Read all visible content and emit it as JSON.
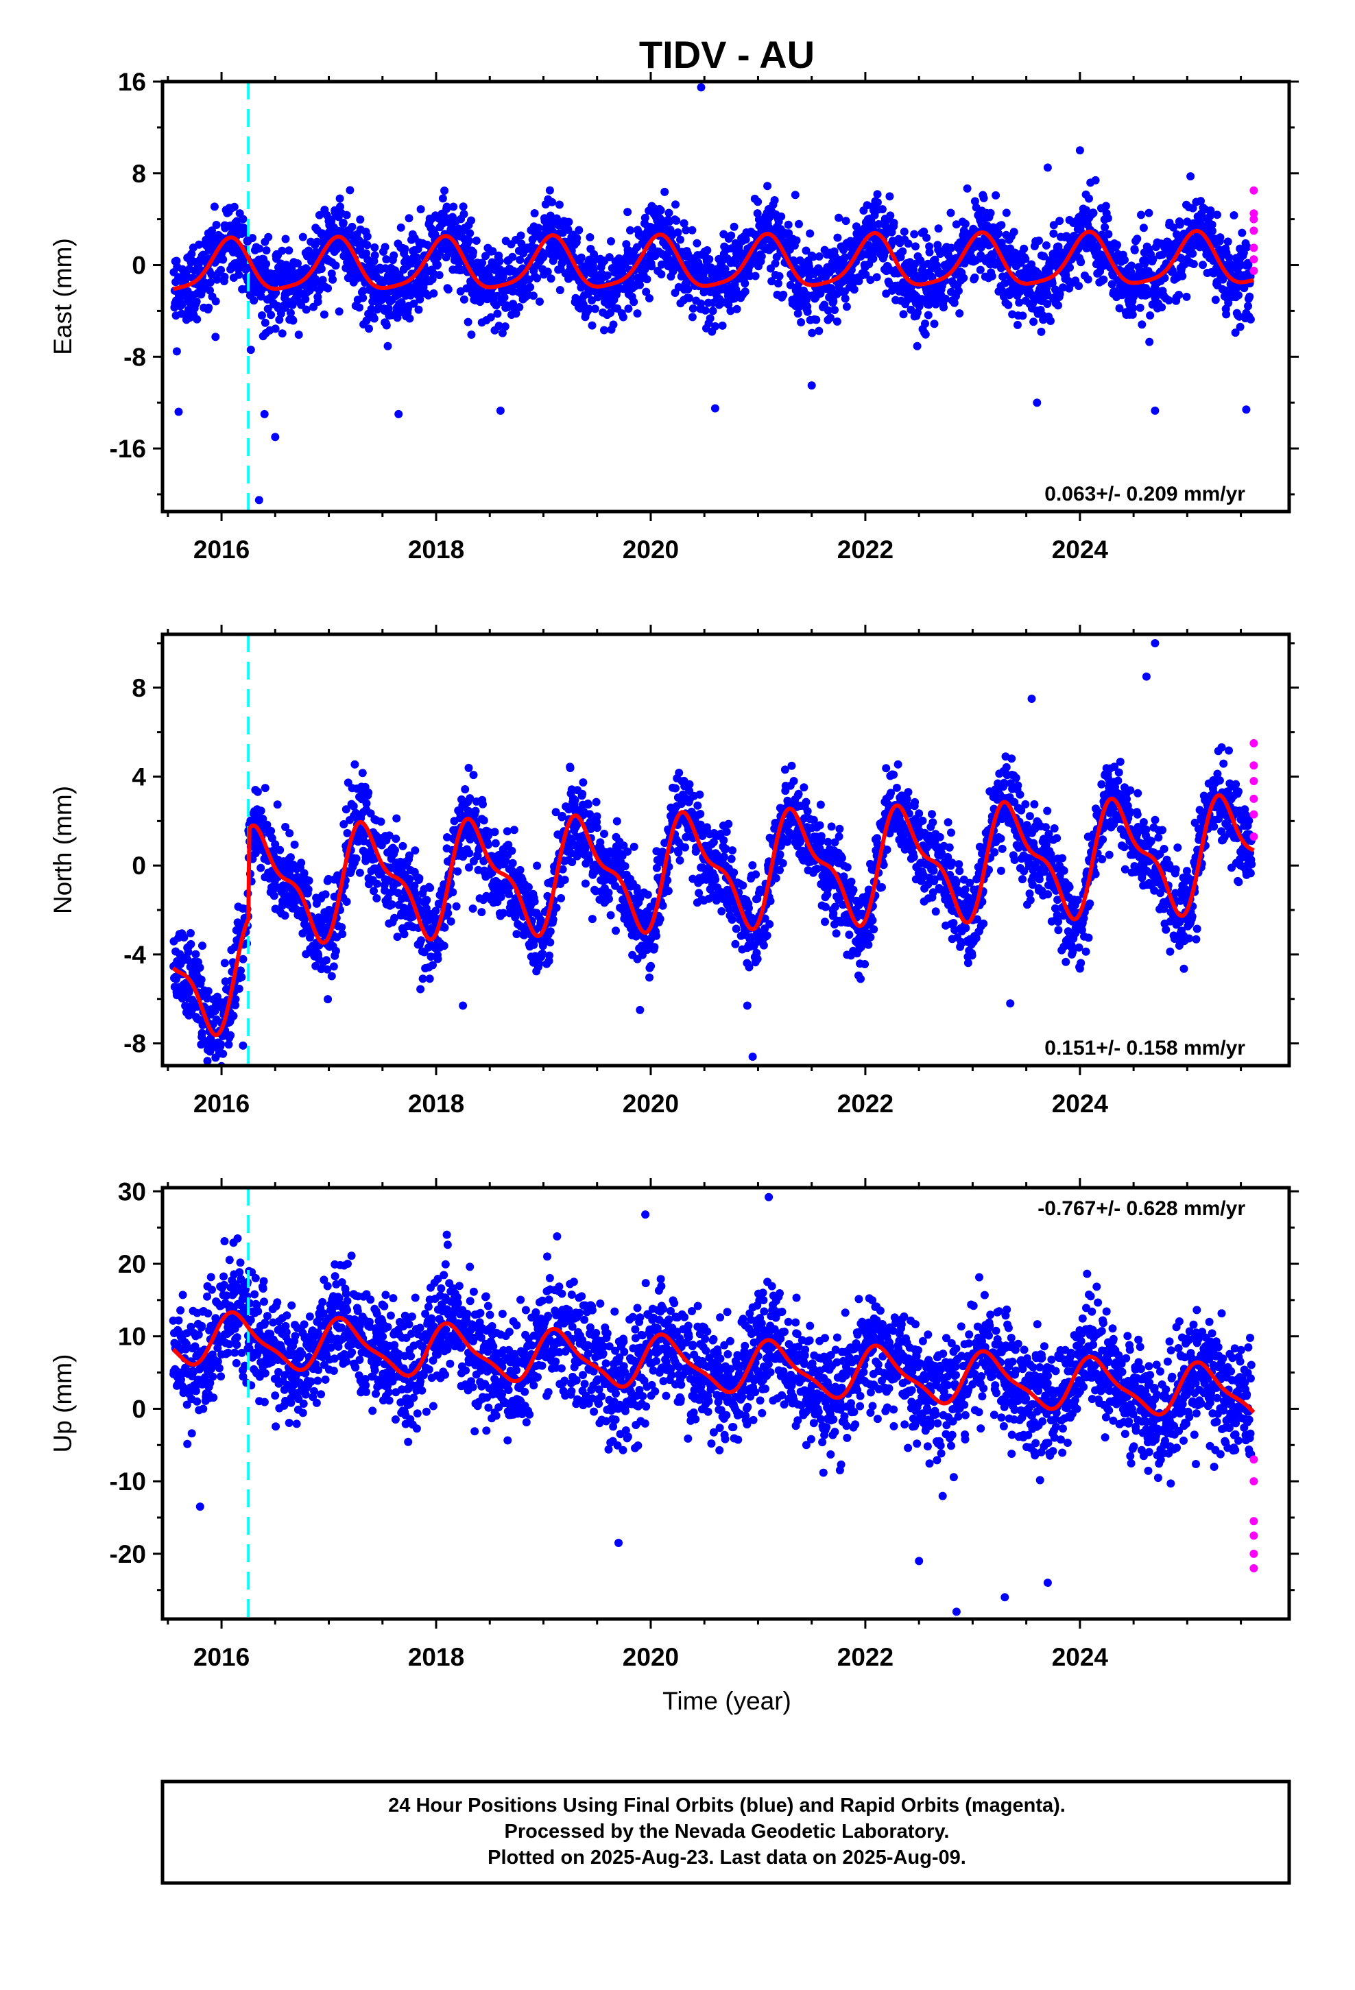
{
  "title": "TIDV - AU",
  "x_axis_label": "Time (year)",
  "footer": {
    "line1": "24 Hour Positions Using Final Orbits (blue) and Rapid Orbits (magenta).",
    "line2": "Processed by the Nevada Geodetic Laboratory.",
    "line3": "Plotted on 2025-Aug-23. Last data on 2025-Aug-09."
  },
  "colors": {
    "final": "#0000ff",
    "rapid": "#ff00ff",
    "model": "#ff0000",
    "event": "#00ffff"
  },
  "chart_data": [
    {
      "type": "scatter",
      "ylabel": "East (mm)",
      "rate_label": "0.063+/- 0.209 mm/yr",
      "xlim": [
        2015.45,
        2025.95
      ],
      "ylim": [
        -21.5,
        16
      ],
      "x_ticks": [
        "2016",
        "2018",
        "2020",
        "2022",
        "2024"
      ],
      "y_ticks": [
        "-16",
        "-8",
        "0",
        "8",
        "16"
      ],
      "equipment_change": 2016.25,
      "model": {
        "offset": 0,
        "rate": 0.063,
        "amp1": 2.2,
        "phase1": 1.1,
        "amp2": 0.5,
        "phase2": 0.3,
        "jump": 0,
        "scatter": 1.8
      },
      "final_points": {
        "start": 2015.55,
        "end": 2025.6,
        "count": 3600
      },
      "rapid_points": [
        {
          "x": 2025.62,
          "y": 6.5
        },
        {
          "x": 2025.62,
          "y": 4.5
        },
        {
          "x": 2025.62,
          "y": 4.0
        },
        {
          "x": 2025.62,
          "y": 3.0
        },
        {
          "x": 2025.62,
          "y": 1.5
        },
        {
          "x": 2025.62,
          "y": 0.5
        },
        {
          "x": 2025.62,
          "y": -0.5
        }
      ],
      "outliers": [
        {
          "x": 2020.47,
          "y": 15.5
        },
        {
          "x": 2024.0,
          "y": 10.0
        },
        {
          "x": 2023.7,
          "y": 8.5
        },
        {
          "x": 2016.35,
          "y": -20.5
        },
        {
          "x": 2016.5,
          "y": -15.0
        },
        {
          "x": 2016.4,
          "y": -13.0
        },
        {
          "x": 2015.6,
          "y": -12.8
        },
        {
          "x": 2017.65,
          "y": -13.0
        },
        {
          "x": 2018.6,
          "y": -12.7
        },
        {
          "x": 2020.6,
          "y": -12.5
        },
        {
          "x": 2021.5,
          "y": -10.5
        },
        {
          "x": 2023.6,
          "y": -12.0
        },
        {
          "x": 2024.7,
          "y": -12.7
        },
        {
          "x": 2025.55,
          "y": -12.6
        }
      ]
    },
    {
      "type": "scatter",
      "ylabel": "North (mm)",
      "rate_label": "0.151+/- 0.158 mm/yr",
      "xlim": [
        2015.45,
        2025.95
      ],
      "ylim": [
        -9,
        10.4
      ],
      "x_ticks": [
        "2016",
        "2018",
        "2020",
        "2022",
        "2024"
      ],
      "y_ticks": [
        "-8",
        "-4",
        "0",
        "4",
        "8"
      ],
      "equipment_change": 2016.25,
      "model": {
        "offset": -0.2,
        "rate": 0.151,
        "amp1": 2.2,
        "phase1": -0.8,
        "amp2": 0.9,
        "phase2": -1.5,
        "jump": 4.0,
        "scatter": 1.0
      },
      "final_points": {
        "start": 2015.55,
        "end": 2025.6,
        "count": 3600
      },
      "rapid_points": [
        {
          "x": 2025.62,
          "y": 5.5
        },
        {
          "x": 2025.62,
          "y": 4.5
        },
        {
          "x": 2025.62,
          "y": 3.8
        },
        {
          "x": 2025.62,
          "y": 3.0
        },
        {
          "x": 2025.62,
          "y": 2.3
        },
        {
          "x": 2025.62,
          "y": 1.3
        }
      ],
      "outliers": [
        {
          "x": 2024.7,
          "y": 10.0
        },
        {
          "x": 2024.62,
          "y": 8.5
        },
        {
          "x": 2023.55,
          "y": 7.5
        },
        {
          "x": 2015.9,
          "y": -8.0
        },
        {
          "x": 2016.2,
          "y": -8.1
        },
        {
          "x": 2020.95,
          "y": -8.6
        },
        {
          "x": 2020.9,
          "y": -6.3
        },
        {
          "x": 2019.9,
          "y": -6.5
        },
        {
          "x": 2023.35,
          "y": -6.2
        },
        {
          "x": 2018.25,
          "y": -6.3
        }
      ]
    },
    {
      "type": "scatter",
      "ylabel": "Up (mm)",
      "rate_label": "-0.767+/- 0.628 mm/yr",
      "xlim": [
        2015.45,
        2025.95
      ],
      "ylim": [
        -29,
        30.5
      ],
      "x_ticks": [
        "2016",
        "2018",
        "2020",
        "2022",
        "2024"
      ],
      "y_ticks": [
        "-20",
        "-10",
        "0",
        "10",
        "20",
        "30"
      ],
      "equipment_change": 2016.25,
      "model": {
        "offset": 6.0,
        "rate": -0.767,
        "amp1": 3.3,
        "phase1": 0.6,
        "amp2": 1.0,
        "phase2": 0.9,
        "jump": 0,
        "scatter": 4.0
      },
      "final_points": {
        "start": 2015.55,
        "end": 2025.6,
        "count": 3600
      },
      "rapid_points": [
        {
          "x": 2025.62,
          "y": -7.0
        },
        {
          "x": 2025.62,
          "y": -10.0
        },
        {
          "x": 2025.62,
          "y": -15.5
        },
        {
          "x": 2025.62,
          "y": -17.5
        },
        {
          "x": 2025.62,
          "y": -20.0
        },
        {
          "x": 2025.62,
          "y": -22.0
        }
      ],
      "outliers": [
        {
          "x": 2021.1,
          "y": 29.2
        },
        {
          "x": 2019.95,
          "y": 26.8
        },
        {
          "x": 2016.15,
          "y": 23.5
        },
        {
          "x": 2022.85,
          "y": -28.0
        },
        {
          "x": 2023.3,
          "y": -26.0
        },
        {
          "x": 2023.7,
          "y": -24.0
        },
        {
          "x": 2022.5,
          "y": -21.0
        },
        {
          "x": 2019.7,
          "y": -18.5
        },
        {
          "x": 2015.8,
          "y": -13.5
        }
      ]
    }
  ]
}
